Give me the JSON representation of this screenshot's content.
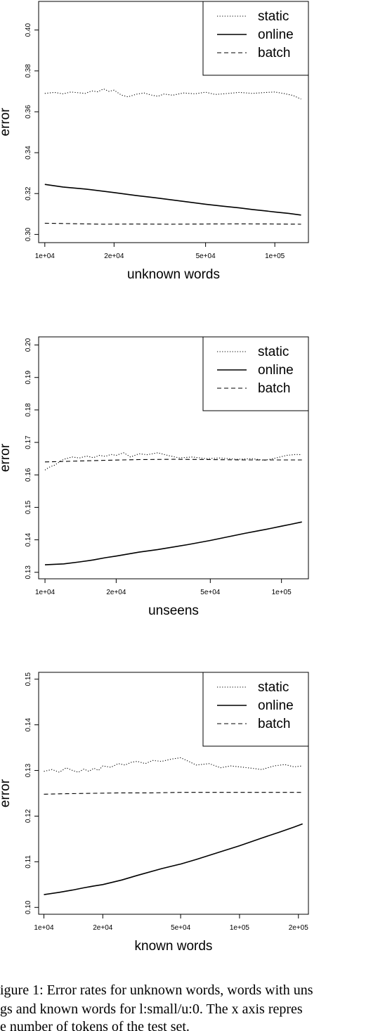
{
  "chart_data": [
    {
      "type": "line",
      "title": "",
      "xlabel": "unknown words",
      "ylabel": "error",
      "x_scale": "log",
      "xlim": [
        9400,
        140000
      ],
      "ylim": [
        0.296,
        0.414
      ],
      "x_ticks": [
        {
          "value": 10000,
          "label": "1e+04"
        },
        {
          "value": 20000,
          "label": "2e+04"
        },
        {
          "value": 50000,
          "label": "5e+04"
        },
        {
          "value": 100000,
          "label": "1e+05"
        }
      ],
      "y_ticks": [
        {
          "value": 0.3,
          "label": "0.30"
        },
        {
          "value": 0.32,
          "label": "0.32"
        },
        {
          "value": 0.34,
          "label": "0.34"
        },
        {
          "value": 0.36,
          "label": "0.36"
        },
        {
          "value": 0.38,
          "label": "0.38"
        },
        {
          "value": 0.4,
          "label": "0.40"
        }
      ],
      "legend": {
        "position": "top-right"
      },
      "series": [
        {
          "name": "static",
          "style": "dotted",
          "x": [
            10000,
            11000,
            12000,
            13000,
            14000,
            15000,
            16000,
            17000,
            18000,
            19000,
            20000,
            21500,
            23000,
            25000,
            27000,
            29000,
            31000,
            33000,
            36000,
            40000,
            45000,
            50000,
            55000,
            60000,
            70000,
            80000,
            90000,
            100000,
            110000,
            120000,
            130000
          ],
          "y": [
            0.369,
            0.3695,
            0.3688,
            0.3697,
            0.3693,
            0.369,
            0.3702,
            0.3698,
            0.3712,
            0.37,
            0.3706,
            0.3682,
            0.3673,
            0.3686,
            0.3692,
            0.3682,
            0.3676,
            0.3687,
            0.3681,
            0.3692,
            0.3688,
            0.3696,
            0.3685,
            0.3688,
            0.3695,
            0.369,
            0.3694,
            0.3697,
            0.3689,
            0.368,
            0.3662
          ]
        },
        {
          "name": "online",
          "style": "solid",
          "x": [
            10000,
            12000,
            15000,
            20000,
            25000,
            30000,
            40000,
            50000,
            60000,
            70000,
            80000,
            90000,
            100000,
            115000,
            130000
          ],
          "y": [
            0.3245,
            0.3232,
            0.3222,
            0.3205,
            0.319,
            0.318,
            0.3162,
            0.3148,
            0.3138,
            0.313,
            0.3122,
            0.3116,
            0.311,
            0.3103,
            0.3095
          ]
        },
        {
          "name": "batch",
          "style": "dashed",
          "x": [
            10000,
            13000,
            18000,
            25000,
            35000,
            50000,
            70000,
            100000,
            130000
          ],
          "y": [
            0.3055,
            0.3053,
            0.305,
            0.3051,
            0.305,
            0.3051,
            0.3052,
            0.3051,
            0.305
          ]
        }
      ]
    },
    {
      "type": "line",
      "title": "",
      "xlabel": "unseens",
      "ylabel": "error",
      "x_scale": "log",
      "xlim": [
        9400,
        130000
      ],
      "ylim": [
        0.128,
        0.2025
      ],
      "x_ticks": [
        {
          "value": 10000,
          "label": "1e+04"
        },
        {
          "value": 20000,
          "label": "2e+04"
        },
        {
          "value": 50000,
          "label": "5e+04"
        },
        {
          "value": 100000,
          "label": "1e+05"
        }
      ],
      "y_ticks": [
        {
          "value": 0.13,
          "label": "0.13"
        },
        {
          "value": 0.14,
          "label": "0.14"
        },
        {
          "value": 0.15,
          "label": "0.15"
        },
        {
          "value": 0.16,
          "label": "0.16"
        },
        {
          "value": 0.17,
          "label": "0.17"
        },
        {
          "value": 0.18,
          "label": "0.18"
        },
        {
          "value": 0.19,
          "label": "0.19"
        },
        {
          "value": 0.2,
          "label": "0.20"
        }
      ],
      "legend": {
        "position": "top-right"
      },
      "series": [
        {
          "name": "static",
          "style": "dotted",
          "x": [
            10000,
            10500,
            11000,
            11500,
            12000,
            13000,
            14000,
            15000,
            16000,
            17000,
            18000,
            19000,
            20000,
            21500,
            23000,
            25000,
            27000,
            30000,
            33000,
            37000,
            42000,
            48000,
            55000,
            65000,
            75000,
            85000,
            95000,
            105000,
            115000,
            122000
          ],
          "y": [
            0.1615,
            0.1625,
            0.163,
            0.164,
            0.1648,
            0.1655,
            0.1652,
            0.1658,
            0.1653,
            0.166,
            0.1657,
            0.1663,
            0.166,
            0.1668,
            0.1655,
            0.1665,
            0.1662,
            0.1668,
            0.166,
            0.1652,
            0.1655,
            0.165,
            0.1652,
            0.1648,
            0.165,
            0.1645,
            0.1652,
            0.166,
            0.1663,
            0.1662
          ]
        },
        {
          "name": "online",
          "style": "solid",
          "x": [
            10000,
            12000,
            14000,
            16000,
            18000,
            20000,
            25000,
            30000,
            40000,
            50000,
            60000,
            70000,
            80000,
            90000,
            100000,
            110000,
            122000
          ],
          "y": [
            0.1323,
            0.1326,
            0.1332,
            0.1338,
            0.1345,
            0.135,
            0.1362,
            0.137,
            0.1385,
            0.1398,
            0.141,
            0.142,
            0.1428,
            0.1435,
            0.1442,
            0.1448,
            0.1455
          ]
        },
        {
          "name": "batch",
          "style": "dashed",
          "x": [
            10000,
            13000,
            18000,
            25000,
            35000,
            50000,
            70000,
            100000,
            122000
          ],
          "y": [
            0.164,
            0.1642,
            0.1645,
            0.1647,
            0.1648,
            0.1647,
            0.1646,
            0.1646,
            0.1646
          ]
        }
      ]
    },
    {
      "type": "line",
      "title": "",
      "xlabel": "known words",
      "ylabel": "error",
      "x_scale": "log",
      "xlim": [
        9400,
        225000
      ],
      "ylim": [
        0.0985,
        0.1515
      ],
      "x_ticks": [
        {
          "value": 10000,
          "label": "1e+04"
        },
        {
          "value": 20000,
          "label": "2e+04"
        },
        {
          "value": 50000,
          "label": "5e+04"
        },
        {
          "value": 100000,
          "label": "1e+05"
        },
        {
          "value": 200000,
          "label": "2e+05"
        }
      ],
      "y_ticks": [
        {
          "value": 0.1,
          "label": "0.10"
        },
        {
          "value": 0.11,
          "label": "0.11"
        },
        {
          "value": 0.12,
          "label": "0.12"
        },
        {
          "value": 0.13,
          "label": "0.13"
        },
        {
          "value": 0.14,
          "label": "0.14"
        },
        {
          "value": 0.15,
          "label": "0.15"
        }
      ],
      "legend": {
        "position": "top-right"
      },
      "series": [
        {
          "name": "static",
          "style": "dotted",
          "x": [
            10000,
            11000,
            12000,
            13000,
            14000,
            15000,
            16000,
            17000,
            18000,
            19000,
            20000,
            22000,
            24000,
            26000,
            28000,
            30000,
            33000,
            36000,
            40000,
            45000,
            50000,
            55000,
            60000,
            70000,
            80000,
            90000,
            100000,
            115000,
            130000,
            150000,
            170000,
            190000,
            210000
          ],
          "y": [
            0.1298,
            0.1302,
            0.1296,
            0.1306,
            0.13,
            0.1296,
            0.1303,
            0.1298,
            0.1305,
            0.13,
            0.131,
            0.1307,
            0.1315,
            0.1312,
            0.1318,
            0.132,
            0.1315,
            0.1322,
            0.132,
            0.1325,
            0.1328,
            0.132,
            0.1312,
            0.1315,
            0.1306,
            0.131,
            0.1308,
            0.1305,
            0.1302,
            0.131,
            0.1313,
            0.1308,
            0.131
          ]
        },
        {
          "name": "online",
          "style": "solid",
          "x": [
            10000,
            12000,
            14000,
            16000,
            18000,
            20000,
            25000,
            30000,
            40000,
            50000,
            60000,
            80000,
            100000,
            130000,
            160000,
            190000,
            210000
          ],
          "y": [
            0.1028,
            0.1033,
            0.1038,
            0.1043,
            0.1047,
            0.105,
            0.106,
            0.107,
            0.1085,
            0.1095,
            0.1105,
            0.1122,
            0.1135,
            0.1152,
            0.1165,
            0.1176,
            0.1183
          ]
        },
        {
          "name": "batch",
          "style": "dashed",
          "x": [
            10000,
            13000,
            18000,
            25000,
            35000,
            50000,
            70000,
            100000,
            150000,
            210000
          ],
          "y": [
            0.1248,
            0.1249,
            0.125,
            0.1251,
            0.1251,
            0.1252,
            0.1252,
            0.1252,
            0.1252,
            0.1252
          ]
        }
      ]
    }
  ],
  "caption": {
    "lines": [
      "igure 1: Error rates for unknown words, words with uns",
      "gs and known words for l:small/u:0. The x axis repres",
      "e number of tokens of the test set."
    ]
  }
}
